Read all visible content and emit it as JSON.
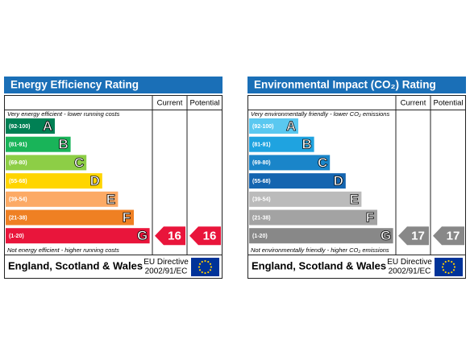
{
  "header_color": "#1a6fb7",
  "panels": [
    {
      "title": "Energy Efficiency Rating",
      "columns": [
        "Current",
        "Potential"
      ],
      "top_note": "Very energy efficient - lower running costs",
      "bottom_note": "Not energy efficient - higher running costs",
      "bands": [
        {
          "range": "(92-100)",
          "letter": "A",
          "color": "#008054"
        },
        {
          "range": "(81-91)",
          "letter": "B",
          "color": "#19b459"
        },
        {
          "range": "(69-80)",
          "letter": "C",
          "color": "#8dce46"
        },
        {
          "range": "(55-68)",
          "letter": "D",
          "color": "#ffd500"
        },
        {
          "range": "(39-54)",
          "letter": "E",
          "color": "#fcaa65"
        },
        {
          "range": "(21-38)",
          "letter": "F",
          "color": "#ef8023"
        },
        {
          "range": "(1-20)",
          "letter": "G",
          "color": "#e9153b"
        }
      ],
      "current": 16,
      "potential": 16,
      "arrow_color": "#e9153b",
      "footer": {
        "region": "England, Scotland & Wales",
        "directive": "EU Directive",
        "directive_code": "2002/91/EC"
      }
    },
    {
      "title": "Environmental Impact (CO₂) Rating",
      "columns": [
        "Current",
        "Potential"
      ],
      "top_note": "Very environmentally friendly - lower CO₂ emissions",
      "bottom_note": "Not environmentally friendly - higher CO₂ emissions",
      "bands": [
        {
          "range": "(92-100)",
          "letter": "A",
          "color": "#5ac8f0"
        },
        {
          "range": "(81-91)",
          "letter": "B",
          "color": "#1fa3e0"
        },
        {
          "range": "(69-80)",
          "letter": "C",
          "color": "#1a85c9"
        },
        {
          "range": "(55-68)",
          "letter": "D",
          "color": "#1565b0"
        },
        {
          "range": "(39-54)",
          "letter": "E",
          "color": "#bbbbbb"
        },
        {
          "range": "(21-38)",
          "letter": "F",
          "color": "#a3a3a3"
        },
        {
          "range": "(1-20)",
          "letter": "G",
          "color": "#888888"
        }
      ],
      "current": 17,
      "potential": 17,
      "arrow_color": "#888888",
      "footer": {
        "region": "England, Scotland & Wales",
        "directive": "EU Directive",
        "directive_code": "2002/91/EC"
      }
    }
  ]
}
